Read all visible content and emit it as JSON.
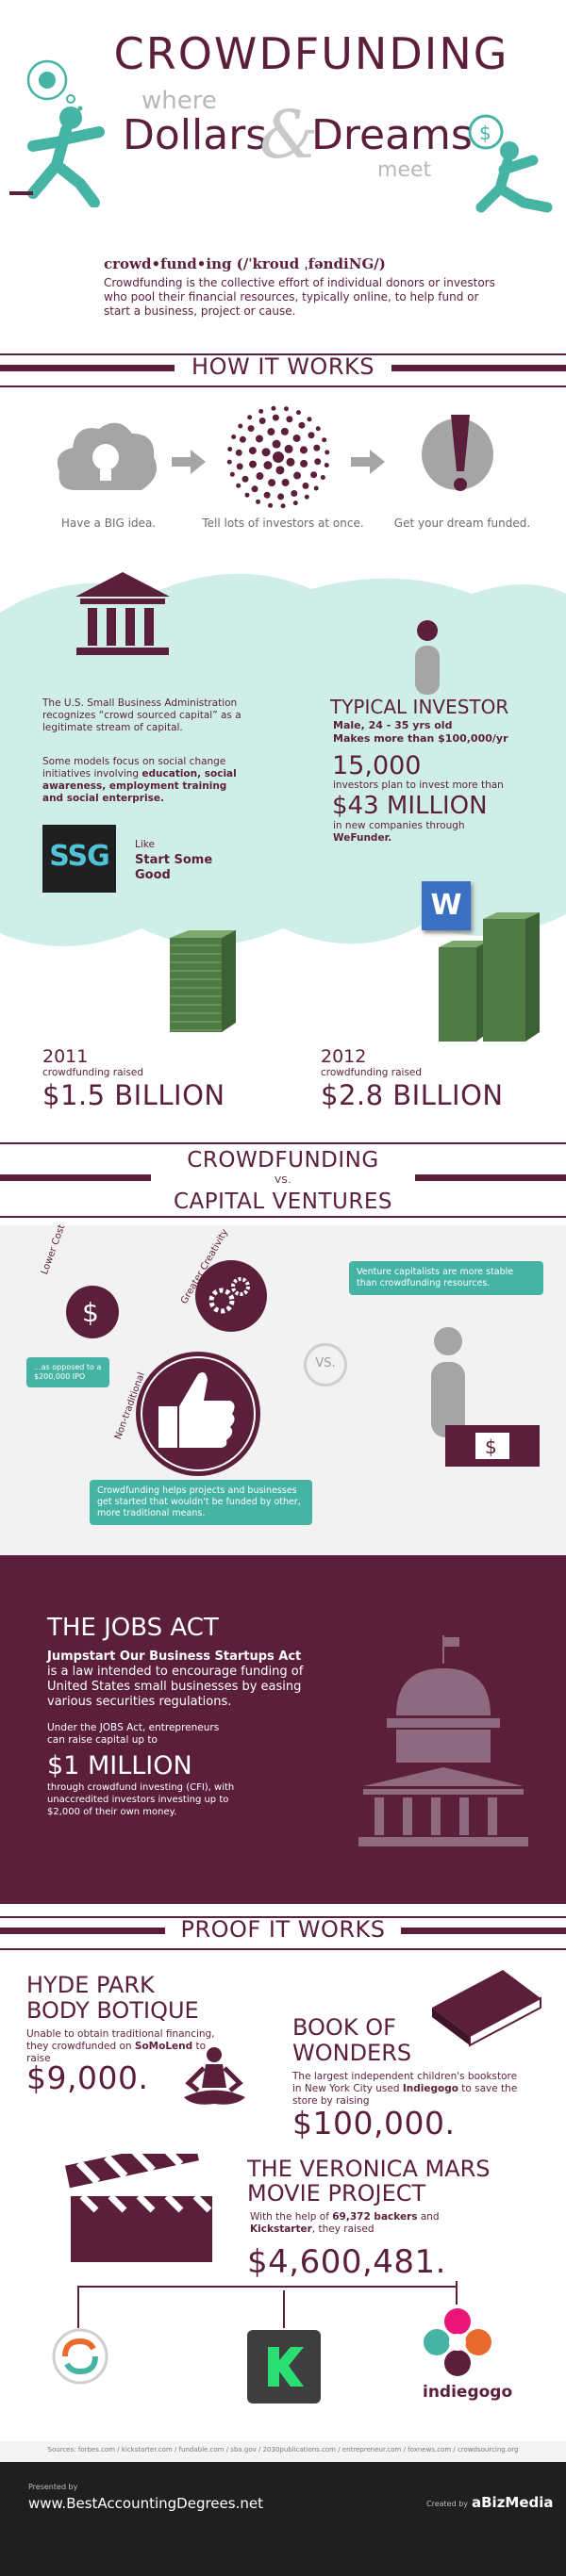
{
  "header": {
    "title": "CROWDFUNDING",
    "where": "where",
    "dollars": "Dollars",
    "amp": "&",
    "dreams": "Dreams",
    "meet": "meet"
  },
  "definition": {
    "word": "crowd•fund•ing (/ˈkroud ˌfəndiNG/)",
    "text": "Crowdfunding is the collective effort of individual donors or investors who pool their financial resources, typically online, to help fund or start a business, project or cause."
  },
  "how_it_works": {
    "title": "HOW IT WORKS",
    "steps": [
      "Have a BIG idea.",
      "Tell lots of investors at once.",
      "Get your dream funded."
    ]
  },
  "sba": {
    "text1": "The U.S. Small Business Administration recognizes “crowd sourced capital” as a legitimate stream of capital.",
    "text2_plain": "Some models focus on social change initiatives involving ",
    "text2_bold": "education, social awareness, employment training and social enterprise.",
    "ssg_logo": "SSG",
    "like": "Like",
    "ssg_name": "Start Some Good"
  },
  "investor": {
    "title": "TYPICAL INVESTOR",
    "line1": "Male,  24 - 35 yrs old",
    "line2": "Makes more than  $100,000/yr",
    "count": "15,000",
    "count_text": "investors plan to invest more than",
    "amount": "$43 MILLION",
    "amount_text": "in new companies through",
    "wefunder": "WeFunder.",
    "w_logo": "W"
  },
  "years": [
    {
      "year": "2011",
      "label": "crowdfunding raised",
      "amount": "$1.5 BILLION"
    },
    {
      "year": "2012",
      "label": "crowdfunding raised",
      "amount": "$2.8 BILLION"
    }
  ],
  "versus": {
    "title1": "CROWDFUNDING",
    "vs": "VS.",
    "title2": "CAPITAL VENTURES",
    "lower_cost": "Lower Cost",
    "creativity": "Greater Creativity",
    "nontraditional": "Non-traditional",
    "ipo_note": "...as opposed to a $200,000 IPO",
    "vc_bubble": "Venture capitalists are more stable than crowdfunding resources.",
    "cf_bubble": "Crowdfunding helps projects and businesses get started that wouldn't be funded by other, more traditional means.",
    "vs_circle": "VS."
  },
  "jobs": {
    "title": "THE JOBS ACT",
    "bold": "Jumpstart Our Business Startups Act",
    "text": " is a law intended to encourage funding of United States small businesses by easing various securities regulations.",
    "under": "Under the JOBS Act, entrepreneurs can raise capital up to",
    "amount": "$1 MILLION",
    "detail": "through crowdfund investing (CFI), with unaccredited investors investing up to $2,000 of their own money."
  },
  "proof": {
    "title": "PROOF IT WORKS",
    "hyde": {
      "title1": "HYDE PARK",
      "title2": "BODY BOTIQUE",
      "text": "Unable to obtain traditional financing, they crowdfunded on",
      "site": "SoMoLend",
      "tail": " to raise",
      "amount": "$9,000."
    },
    "book": {
      "title1": "BOOK OF",
      "title2": "WONDERS",
      "text": "The largest independent children's bookstore in New York City used",
      "site": "Indiegogo",
      "tail": " to save the store by raising",
      "amount": "$100,000."
    },
    "veronica": {
      "title1": "THE VERONICA MARS",
      "title2": "MOVIE PROJECT",
      "text1": "With the help of ",
      "backers": "69,372 backers",
      "text2": " and ",
      "site": "Kickstarter",
      "text3": ", they raised",
      "amount": "$4,600,481."
    },
    "indiegogo": "indiegogo"
  },
  "footer": {
    "sources": "Sources: forbes.com / kickstarter.com / fundable.com / sba.gov / 2030publications.com / entrepreneur.com / foxnews.com / crowdsourcing.org",
    "presented": "Presented by",
    "site": "www.BestAccountingDegrees.net",
    "created": "Created by",
    "creator": "aBizMedia"
  },
  "colors": {
    "plum": "#5b1f3b",
    "teal": "#46b4a4",
    "mint": "#cfeee8",
    "green": "#4f7a45"
  }
}
